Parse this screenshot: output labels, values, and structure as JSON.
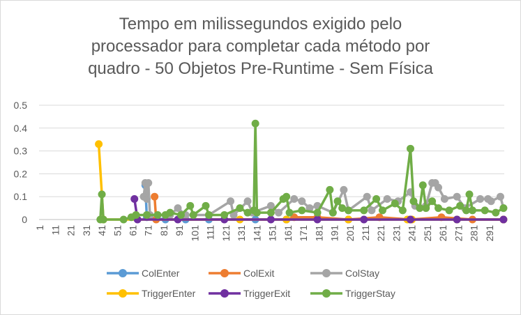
{
  "chart_data": {
    "type": "line",
    "title_lines": [
      "Tempo em milissegundos exigido pelo",
      "processador para completar cada método por",
      "quadro - 50 Objetos Pre-Runtime - Sem Física"
    ],
    "ylim": [
      0,
      0.5
    ],
    "y_ticks": [
      "0",
      "0.1",
      "0.2",
      "0.3",
      "0.4",
      "0.5"
    ],
    "x_tick_labels": [
      "1",
      "11",
      "21",
      "31",
      "41",
      "51",
      "61",
      "71",
      "81",
      "91",
      "101",
      "111",
      "121",
      "131",
      "141",
      "151",
      "161",
      "171",
      "181",
      "191",
      "201",
      "211",
      "221",
      "231",
      "241",
      "251",
      "261",
      "271",
      "281",
      "291"
    ],
    "frame_count": 300,
    "grid": "horizontal",
    "legend_position": "bottom",
    "series": [
      {
        "name": "ColEnter",
        "color": "#5B9BD5",
        "points": [
          [
            69,
            0.15
          ],
          [
            70,
            0.01
          ],
          [
            82,
            0.0
          ],
          [
            95,
            0.0
          ],
          [
            110,
            0.0
          ],
          [
            140,
            0.0
          ],
          [
            160,
            0.0
          ],
          [
            200,
            0.0
          ],
          [
            240,
            0.0
          ],
          [
            270,
            0.0
          ],
          [
            300,
            0.0
          ]
        ]
      },
      {
        "name": "ColExit",
        "color": "#ED7D31",
        "points": [
          [
            75,
            0.1
          ],
          [
            76,
            0.0
          ],
          [
            160,
            0.0
          ],
          [
            165,
            0.01
          ],
          [
            180,
            0.01
          ],
          [
            200,
            0.0
          ],
          [
            220,
            0.01
          ],
          [
            240,
            0.0
          ],
          [
            260,
            0.01
          ],
          [
            280,
            0.0
          ],
          [
            300,
            0.0
          ]
        ]
      },
      {
        "name": "ColStay",
        "color": "#A5A5A5",
        "points": [
          [
            68,
            0.1
          ],
          [
            69,
            0.16
          ],
          [
            70,
            0.09
          ],
          [
            71,
            0.16
          ],
          [
            72,
            0.02
          ],
          [
            85,
            0.02
          ],
          [
            90,
            0.05
          ],
          [
            95,
            0.02
          ],
          [
            110,
            0.02
          ],
          [
            124,
            0.08
          ],
          [
            126,
            0.02
          ],
          [
            135,
            0.08
          ],
          [
            138,
            0.03
          ],
          [
            150,
            0.06
          ],
          [
            155,
            0.03
          ],
          [
            165,
            0.09
          ],
          [
            170,
            0.08
          ],
          [
            175,
            0.05
          ],
          [
            180,
            0.06
          ],
          [
            190,
            0.03
          ],
          [
            197,
            0.13
          ],
          [
            200,
            0.04
          ],
          [
            212,
            0.1
          ],
          [
            215,
            0.04
          ],
          [
            225,
            0.09
          ],
          [
            232,
            0.08
          ],
          [
            240,
            0.12
          ],
          [
            243,
            0.06
          ],
          [
            250,
            0.06
          ],
          [
            254,
            0.16
          ],
          [
            256,
            0.16
          ],
          [
            258,
            0.14
          ],
          [
            262,
            0.09
          ],
          [
            270,
            0.1
          ],
          [
            275,
            0.05
          ],
          [
            285,
            0.09
          ],
          [
            290,
            0.09
          ],
          [
            292,
            0.08
          ],
          [
            298,
            0.1
          ],
          [
            300,
            0.05
          ]
        ]
      },
      {
        "name": "TriggerEnter",
        "color": "#FFC000",
        "points": [
          [
            39,
            0.33
          ],
          [
            42,
            0.0
          ],
          [
            130,
            0.0
          ],
          [
            160,
            0.0
          ],
          [
            200,
            0.0
          ],
          [
            238,
            0.0
          ],
          [
            241,
            0.0
          ],
          [
            270,
            0.0
          ],
          [
            300,
            0.0
          ]
        ]
      },
      {
        "name": "TriggerExit",
        "color": "#7030A0",
        "points": [
          [
            62,
            0.09
          ],
          [
            64,
            0.0
          ],
          [
            90,
            0.0
          ],
          [
            120,
            0.0
          ],
          [
            150,
            0.0
          ],
          [
            180,
            0.0
          ],
          [
            210,
            0.0
          ],
          [
            240,
            0.0
          ],
          [
            270,
            0.0
          ],
          [
            300,
            0.0
          ]
        ]
      },
      {
        "name": "TriggerStay",
        "color": "#70AD47",
        "points": [
          [
            40,
            0.0
          ],
          [
            41,
            0.11
          ],
          [
            42,
            0.0
          ],
          [
            55,
            0.0
          ],
          [
            60,
            0.01
          ],
          [
            63,
            0.02
          ],
          [
            70,
            0.02
          ],
          [
            77,
            0.02
          ],
          [
            82,
            0.02
          ],
          [
            85,
            0.03
          ],
          [
            92,
            0.02
          ],
          [
            98,
            0.06
          ],
          [
            100,
            0.02
          ],
          [
            108,
            0.06
          ],
          [
            110,
            0.02
          ],
          [
            120,
            0.02
          ],
          [
            130,
            0.05
          ],
          [
            135,
            0.03
          ],
          [
            139,
            0.04
          ],
          [
            140,
            0.42
          ],
          [
            141,
            0.03
          ],
          [
            150,
            0.03
          ],
          [
            158,
            0.09
          ],
          [
            160,
            0.1
          ],
          [
            162,
            0.03
          ],
          [
            170,
            0.04
          ],
          [
            180,
            0.03
          ],
          [
            188,
            0.13
          ],
          [
            190,
            0.03
          ],
          [
            193,
            0.08
          ],
          [
            196,
            0.05
          ],
          [
            200,
            0.04
          ],
          [
            210,
            0.04
          ],
          [
            218,
            0.09
          ],
          [
            222,
            0.04
          ],
          [
            230,
            0.07
          ],
          [
            235,
            0.04
          ],
          [
            240,
            0.31
          ],
          [
            242,
            0.08
          ],
          [
            246,
            0.05
          ],
          [
            248,
            0.15
          ],
          [
            250,
            0.05
          ],
          [
            254,
            0.08
          ],
          [
            258,
            0.05
          ],
          [
            265,
            0.04
          ],
          [
            272,
            0.06
          ],
          [
            276,
            0.04
          ],
          [
            278,
            0.11
          ],
          [
            280,
            0.04
          ],
          [
            288,
            0.04
          ],
          [
            295,
            0.03
          ],
          [
            300,
            0.05
          ]
        ]
      }
    ]
  }
}
